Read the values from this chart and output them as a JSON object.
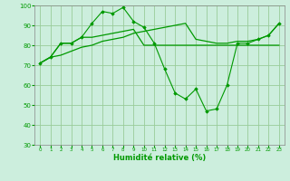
{
  "xlabel": "Humidité relative (%)",
  "background_color": "#cceedd",
  "grid_color": "#99cc99",
  "line_color": "#009900",
  "xlim": [
    -0.5,
    23.5
  ],
  "ylim": [
    30,
    100
  ],
  "xticks": [
    0,
    1,
    2,
    3,
    4,
    5,
    6,
    7,
    8,
    9,
    10,
    11,
    12,
    13,
    14,
    15,
    16,
    17,
    18,
    19,
    20,
    21,
    22,
    23
  ],
  "yticks": [
    30,
    40,
    50,
    60,
    70,
    80,
    90,
    100
  ],
  "line1": [
    71,
    74,
    81,
    81,
    84,
    91,
    97,
    96,
    99,
    92,
    89,
    81,
    68,
    56,
    53,
    58,
    47,
    48,
    60,
    81,
    81,
    83,
    85,
    91
  ],
  "line2": [
    71,
    74,
    81,
    81,
    84,
    84,
    85,
    86,
    87,
    88,
    80,
    80,
    80,
    80,
    80,
    80,
    80,
    80,
    80,
    80,
    80,
    80,
    80,
    80
  ],
  "line3": [
    71,
    74,
    75,
    77,
    79,
    80,
    82,
    83,
    84,
    86,
    87,
    88,
    89,
    90,
    91,
    83,
    82,
    81,
    81,
    82,
    82,
    83,
    85,
    91
  ]
}
